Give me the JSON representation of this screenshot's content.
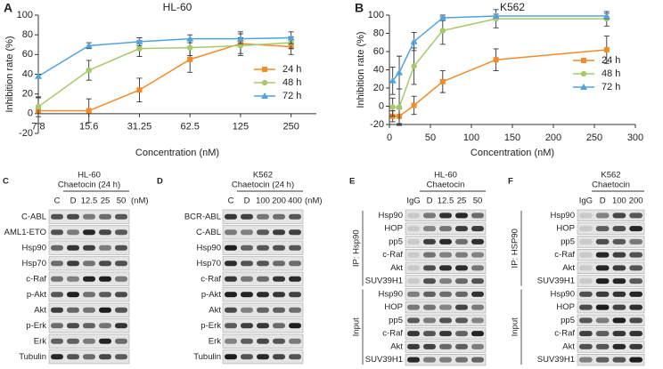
{
  "chart_data": [
    {
      "type": "line",
      "letter": "A",
      "title": "HL-60",
      "xlabel": "Concentration (nM)",
      "ylabel": "Inhibition rate (%)",
      "categories": [
        "7.8",
        "15.6",
        "31.25",
        "62.5",
        "125",
        "250"
      ],
      "ylim": [
        -20,
        100
      ],
      "yticks": [
        -20,
        0,
        20,
        40,
        60,
        80,
        100
      ],
      "legend": "lower right",
      "series": [
        {
          "name": "24 h",
          "color": "#f28c28",
          "marker": "square",
          "values": [
            3,
            3,
            24,
            55,
            71,
            68
          ],
          "errors": [
            13,
            12,
            12,
            13,
            12,
            8
          ]
        },
        {
          "name": "48 h",
          "color": "#a6c96a",
          "marker": "circle",
          "values": [
            7,
            44,
            66,
            67,
            69,
            72
          ],
          "errors": [
            10,
            10,
            8,
            8,
            8,
            6
          ]
        },
        {
          "name": "72 h",
          "color": "#4fa3e0",
          "marker": "triangle",
          "values": [
            38,
            69,
            73,
            76,
            76,
            77
          ],
          "errors": [
            2,
            3,
            4,
            4,
            5,
            6
          ]
        }
      ]
    },
    {
      "type": "line",
      "letter": "B",
      "title": "K562",
      "xlabel": "Concentration (nM)",
      "ylabel": "Inhibition rate (%)",
      "x": [
        4,
        12,
        30,
        65,
        130,
        265
      ],
      "xlim": [
        0,
        300
      ],
      "xticks": [
        0,
        50,
        100,
        150,
        200,
        250,
        300
      ],
      "ylim": [
        -20,
        100
      ],
      "yticks": [
        -20,
        0,
        20,
        40,
        60,
        80,
        100
      ],
      "legend": "lower right",
      "series": [
        {
          "name": "24 h",
          "color": "#f28c28",
          "marker": "square",
          "values": [
            -11,
            -11,
            1,
            27,
            51,
            62
          ],
          "errors": [
            6,
            8,
            10,
            12,
            12,
            15
          ]
        },
        {
          "name": "48 h",
          "color": "#a6c96a",
          "marker": "circle",
          "values": [
            -1,
            -1,
            44,
            83,
            96,
            96
          ],
          "errors": [
            10,
            20,
            20,
            15,
            10,
            8
          ]
        },
        {
          "name": "72 h",
          "color": "#4fa3e0",
          "marker": "triangle",
          "values": [
            28,
            37,
            71,
            97,
            99,
            99
          ],
          "errors": [
            15,
            18,
            10,
            3,
            2,
            3
          ]
        }
      ]
    }
  ],
  "blots": [
    {
      "letter": "C",
      "title": "HL-60",
      "subtitle": "Chaetocin (24 h)",
      "lanes": [
        "C",
        "D",
        "12.5",
        "25",
        "50"
      ],
      "unit": "(nM)",
      "groups": [
        {
          "rows": [
            "C-ABL",
            "AML1-ETO",
            "Hsp90",
            "Hsp70",
            "c-Raf",
            "p-Akt",
            "Akt",
            "p-Erk",
            "Erk",
            "Tubulin"
          ]
        }
      ]
    },
    {
      "letter": "D",
      "title": "K562",
      "subtitle": "Chaetocin (24 h)",
      "lanes": [
        "C",
        "D",
        "100",
        "200",
        "400"
      ],
      "unit": "(nM)",
      "groups": [
        {
          "rows": [
            "BCR-ABL",
            "C-ABL",
            "Hsp90",
            "Hsp70",
            "c-Raf",
            "p-Akt",
            "Akt",
            "p-Erk",
            "Erk",
            "Tubulin"
          ]
        }
      ]
    },
    {
      "letter": "E",
      "title": "HL-60",
      "subtitle": "Chaetocin",
      "lanes": [
        "IgG",
        "D",
        "12.5",
        "25",
        "50"
      ],
      "groups": [
        {
          "label": "IP: Hsp90",
          "rows": [
            "Hsp90",
            "HOP",
            "pp5",
            "c-Raf",
            "Akt",
            "SUV39H1"
          ]
        },
        {
          "label": "Input",
          "rows": [
            "Hsp90",
            "HOP",
            "pp5",
            "c-Raf",
            "Akt",
            "SUV39H1"
          ]
        }
      ]
    },
    {
      "letter": "F",
      "title": "K562",
      "subtitle": "Chaetocin",
      "lanes": [
        "IgG",
        "D",
        "100",
        "200"
      ],
      "groups": [
        {
          "label": "IP: HSP90",
          "rows": [
            "Hsp90",
            "HOP",
            "pp5",
            "c-Raf",
            "Akt",
            "SUV39H1"
          ]
        },
        {
          "label": "Input",
          "rows": [
            "Hsp90",
            "HOP",
            "pp5",
            "c-Raf",
            "Akt",
            "SUV39H1"
          ]
        }
      ]
    }
  ]
}
